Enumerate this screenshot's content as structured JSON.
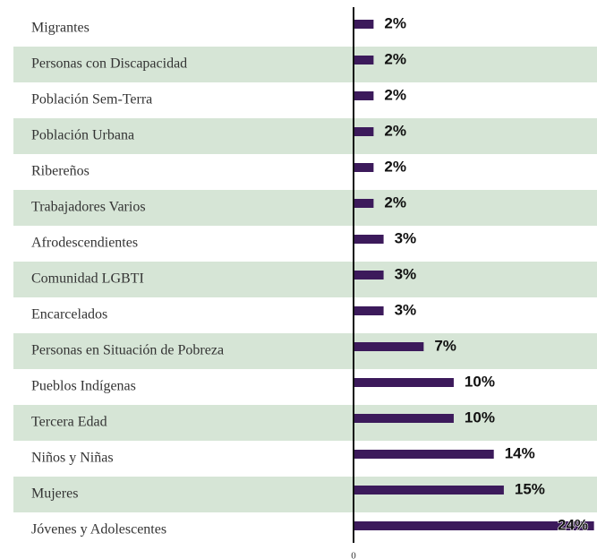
{
  "chart_data": {
    "type": "bar",
    "orientation": "horizontal",
    "categories": [
      "Migrantes",
      "Personas con Discapacidad",
      "Población Sem-Terra",
      "Población Urbana",
      "Ribereños",
      "Trabajadores Varios",
      "Afrodescendientes",
      "Comunidad LGBTI",
      "Encarcelados",
      "Personas en Situación de Pobreza",
      "Pueblos Indígenas",
      "Tercera Edad",
      "Niños y Niñas",
      "Mujeres",
      "Jóvenes y Adolescentes"
    ],
    "values": [
      2,
      2,
      2,
      2,
      2,
      2,
      3,
      3,
      3,
      7,
      10,
      10,
      14,
      15,
      24
    ],
    "value_labels": [
      "2%",
      "2%",
      "2%",
      "2%",
      "2%",
      "2%",
      "3%",
      "3%",
      "3%",
      "7%",
      "10%",
      "10%",
      "14%",
      "15%",
      "24%"
    ],
    "color": "#3c1a5b",
    "stripe_color": "#d6e5d6",
    "xlim": [
      0,
      24.3
    ],
    "xticks": [
      0
    ]
  }
}
